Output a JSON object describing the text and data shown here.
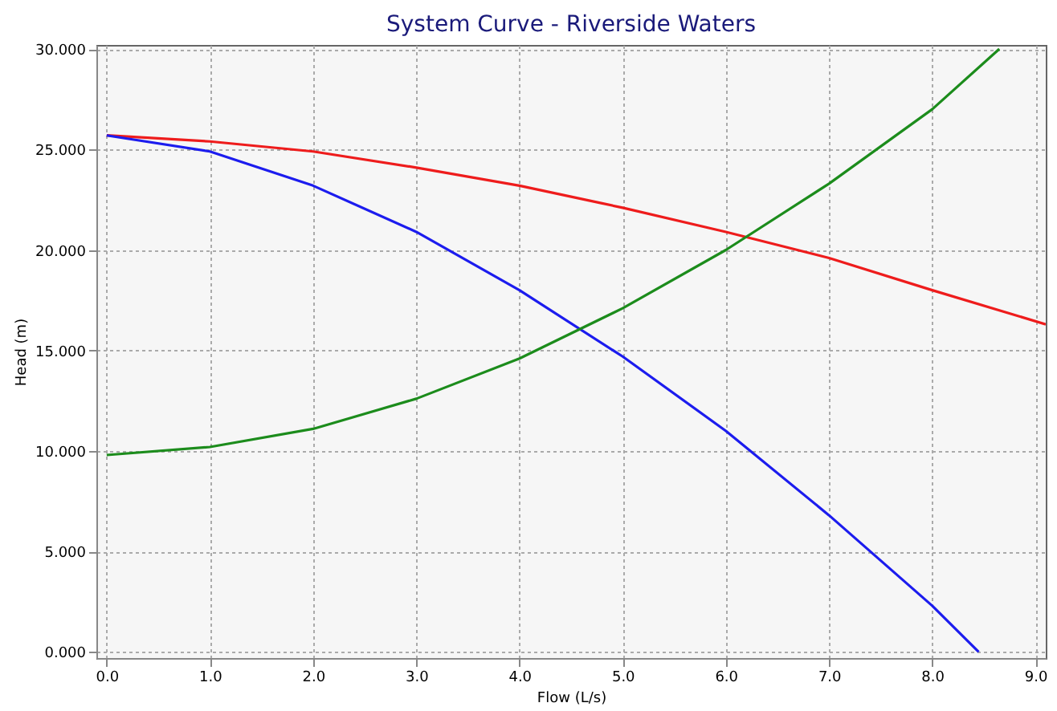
{
  "chart_data": {
    "type": "line",
    "title": "System Curve - Riverside Waters",
    "xlabel": "Flow (L/s)",
    "ylabel": "Head (m)",
    "xlim": [
      -0.1,
      9.1
    ],
    "ylim": [
      -0.3,
      30.2
    ],
    "xticks": [
      {
        "value": 0,
        "label": "0.0"
      },
      {
        "value": 1,
        "label": "1.0"
      },
      {
        "value": 2,
        "label": "2.0"
      },
      {
        "value": 3,
        "label": "3.0"
      },
      {
        "value": 4,
        "label": "4.0"
      },
      {
        "value": 5,
        "label": "5.0"
      },
      {
        "value": 6,
        "label": "6.0"
      },
      {
        "value": 7,
        "label": "7.0"
      },
      {
        "value": 8,
        "label": "8.0"
      },
      {
        "value": 9,
        "label": "9.0"
      }
    ],
    "yticks": [
      {
        "value": 0,
        "label": "0.000"
      },
      {
        "value": 5,
        "label": "5.000"
      },
      {
        "value": 10,
        "label": "10.000"
      },
      {
        "value": 15,
        "label": "15.000"
      },
      {
        "value": 20,
        "label": "20.000"
      },
      {
        "value": 25,
        "label": "25.000"
      },
      {
        "value": 30,
        "label": "30.000"
      }
    ],
    "grid": true,
    "line_style": "solid",
    "marker": "none",
    "series": [
      {
        "color": "#ee1c1c",
        "x": [
          0,
          1,
          2,
          3,
          4,
          5,
          6,
          7,
          8,
          9.1
        ],
        "values": [
          25.7,
          25.4,
          24.9,
          24.1,
          23.2,
          22.1,
          20.9,
          19.6,
          18.0,
          16.3
        ]
      },
      {
        "color": "#1c1cee",
        "x": [
          0,
          1,
          2,
          3,
          4,
          5,
          6,
          7,
          8,
          8.45
        ],
        "values": [
          25.7,
          24.9,
          23.2,
          20.9,
          18.0,
          14.7,
          11.0,
          6.8,
          2.3,
          0
        ]
      },
      {
        "color": "#1c8c1c",
        "x": [
          0,
          1,
          2,
          3,
          4,
          5,
          6,
          7,
          8,
          8.65
        ],
        "values": [
          9.8,
          10.2,
          11.1,
          12.6,
          14.6,
          17.1,
          20.0,
          23.3,
          27.0,
          30.0
        ]
      }
    ]
  }
}
